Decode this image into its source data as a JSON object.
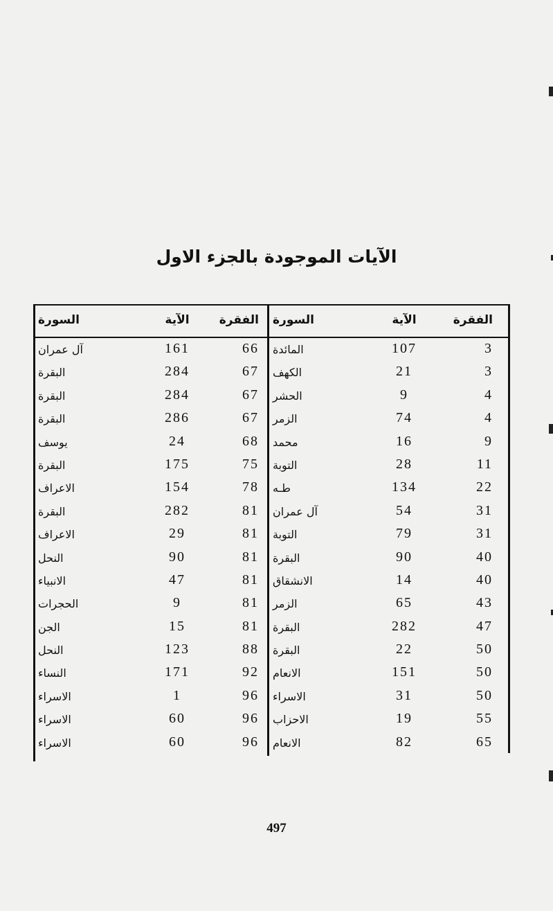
{
  "title": "الآيات الموجودة بالجزء الاول",
  "headers": {
    "paragraph": "الفقرة",
    "verse": "الآية",
    "surah": "السورة"
  },
  "right_half": [
    {
      "paragraph": "3",
      "verse": "107",
      "surah": "المائدة"
    },
    {
      "paragraph": "3",
      "verse": "21",
      "surah": "الكهف"
    },
    {
      "paragraph": "4",
      "verse": "9",
      "surah": "الحشر"
    },
    {
      "paragraph": "4",
      "verse": "74",
      "surah": "الزمر"
    },
    {
      "paragraph": "9",
      "verse": "16",
      "surah": "محمد"
    },
    {
      "paragraph": "11",
      "verse": "28",
      "surah": "التوبة"
    },
    {
      "paragraph": "22",
      "verse": "134",
      "surah": "طـه"
    },
    {
      "paragraph": "31",
      "verse": "54",
      "surah": "آل عمران"
    },
    {
      "paragraph": "31",
      "verse": "79",
      "surah": "التوبة"
    },
    {
      "paragraph": "40",
      "verse": "90",
      "surah": "البقرة"
    },
    {
      "paragraph": "40",
      "verse": "14",
      "surah": "الانشقاق"
    },
    {
      "paragraph": "43",
      "verse": "65",
      "surah": "الزمر"
    },
    {
      "paragraph": "47",
      "verse": "282",
      "surah": "البقرة"
    },
    {
      "paragraph": "50",
      "verse": "22",
      "surah": "البقرة"
    },
    {
      "paragraph": "50",
      "verse": "151",
      "surah": "الانعام"
    },
    {
      "paragraph": "50",
      "verse": "31",
      "surah": "الاسراء"
    },
    {
      "paragraph": "55",
      "verse": "19",
      "surah": "الاحزاب"
    },
    {
      "paragraph": "65",
      "verse": "82",
      "surah": "الانعام"
    }
  ],
  "left_half": [
    {
      "paragraph": "66",
      "verse": "161",
      "surah": "آل عمران"
    },
    {
      "paragraph": "67",
      "verse": "284",
      "surah": "البقرة"
    },
    {
      "paragraph": "67",
      "verse": "284",
      "surah": "البقرة"
    },
    {
      "paragraph": "67",
      "verse": "286",
      "surah": "البقرة"
    },
    {
      "paragraph": "68",
      "verse": "24",
      "surah": "يوسف"
    },
    {
      "paragraph": "75",
      "verse": "175",
      "surah": "البقرة"
    },
    {
      "paragraph": "78",
      "verse": "154",
      "surah": "الاعراف"
    },
    {
      "paragraph": "81",
      "verse": "282",
      "surah": "البقرة"
    },
    {
      "paragraph": "81",
      "verse": "29",
      "surah": "الاعراف"
    },
    {
      "paragraph": "81",
      "verse": "90",
      "surah": "النحل"
    },
    {
      "paragraph": "81",
      "verse": "47",
      "surah": "الانبياء"
    },
    {
      "paragraph": "81",
      "verse": "9",
      "surah": "الحجرات"
    },
    {
      "paragraph": "81",
      "verse": "15",
      "surah": "الجن"
    },
    {
      "paragraph": "88",
      "verse": "123",
      "surah": "النحل"
    },
    {
      "paragraph": "92",
      "verse": "171",
      "surah": "النساء"
    },
    {
      "paragraph": "96",
      "verse": "1",
      "surah": "الاسراء"
    },
    {
      "paragraph": "96",
      "verse": "60",
      "surah": "الاسراء"
    },
    {
      "paragraph": "96",
      "verse": "60",
      "surah": "الاسراء"
    }
  ],
  "page_number": "497"
}
